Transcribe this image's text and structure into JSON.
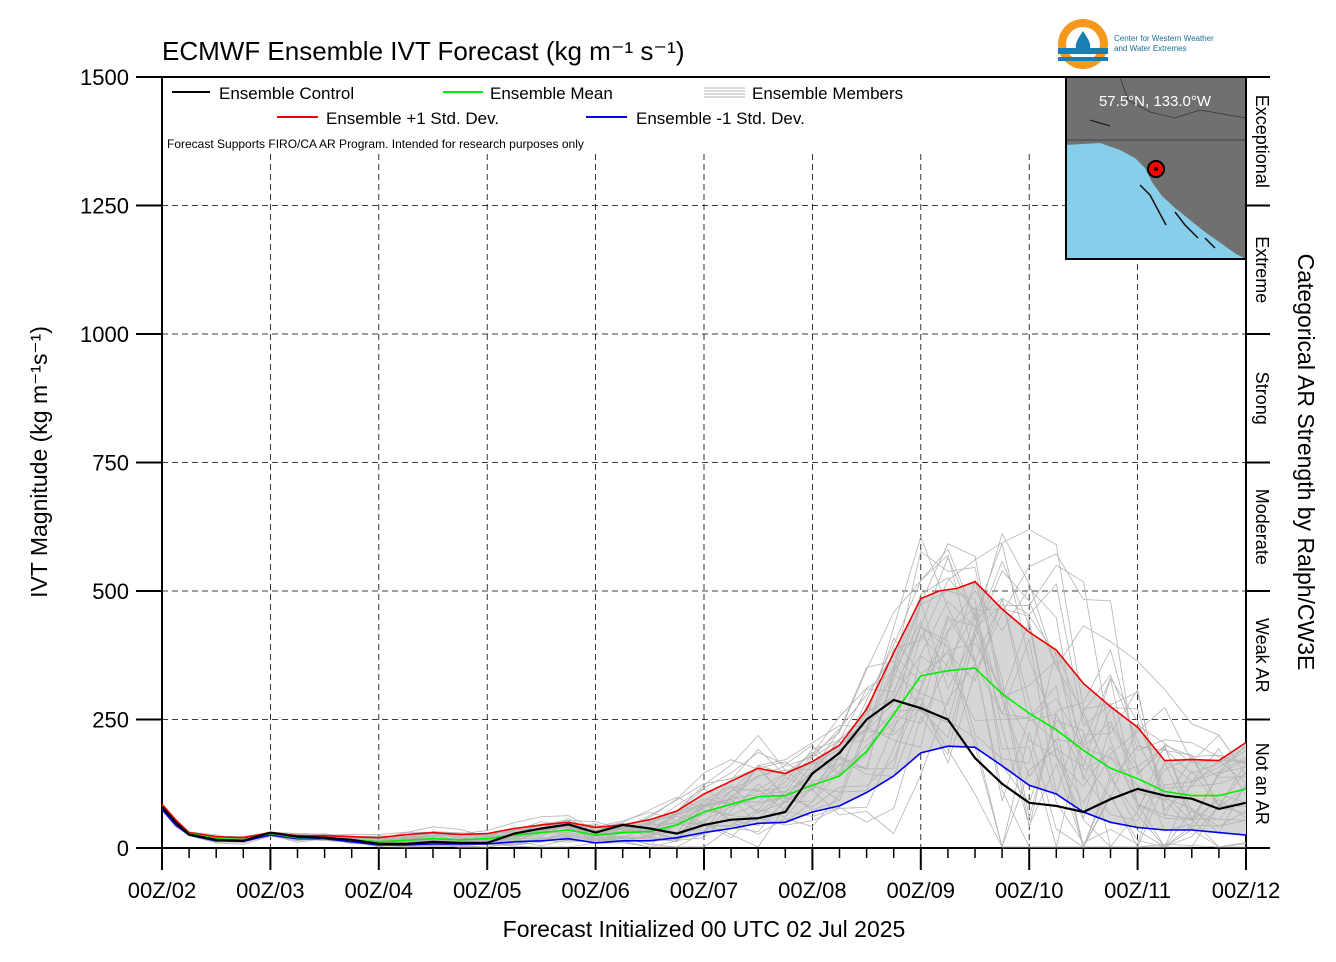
{
  "logo": {
    "line1": "Center for Western Weather",
    "line2": "and Water Extremes",
    "icon": "water-drop-logo-icon",
    "colors": {
      "ring": "#f39a1e",
      "band": "#1a7fb0"
    }
  },
  "inset_map": {
    "location_label": "57.5°N, 133.0°W",
    "icon": "location-marker-icon",
    "colors": {
      "land": "#707070",
      "ocean": "#87ceeb",
      "marker": "#ff0000"
    }
  },
  "chart_data": {
    "type": "line",
    "title": "ECMWF Ensemble IVT Forecast (kg m⁻¹ s⁻¹)",
    "ylabel": "IVT Magnitude (kg m⁻¹s⁻¹)",
    "xlabel": "Forecast Initialized 00 UTC 02 Jul 2025",
    "right_axis_label": "Categorical AR Strength by Ralph/CW3E",
    "note": "Forecast Supports FIRO/CA AR Program. Intended for research purposes only",
    "ylim": [
      0,
      1500
    ],
    "xlim": [
      0,
      240
    ],
    "y_ticks": [
      0,
      250,
      500,
      750,
      1000,
      1250,
      1500
    ],
    "x_ticks": [
      {
        "t": 0,
        "label": "00Z/02"
      },
      {
        "t": 24,
        "label": "00Z/03"
      },
      {
        "t": 48,
        "label": "00Z/04"
      },
      {
        "t": 72,
        "label": "00Z/05"
      },
      {
        "t": 96,
        "label": "00Z/06"
      },
      {
        "t": 120,
        "label": "00Z/07"
      },
      {
        "t": 144,
        "label": "00Z/08"
      },
      {
        "t": 168,
        "label": "00Z/09"
      },
      {
        "t": 192,
        "label": "00Z/10"
      },
      {
        "t": 216,
        "label": "00Z/11"
      },
      {
        "t": 240,
        "label": "00Z/12"
      }
    ],
    "grid": true,
    "legend_position": "top-left",
    "legend": [
      {
        "label": "Ensemble Control",
        "color": "#000000"
      },
      {
        "label": "Ensemble Mean",
        "color": "#00ee00"
      },
      {
        "label": "Ensemble Members",
        "color": "#b4b4b4"
      },
      {
        "label": "Ensemble +1 Std. Dev.",
        "color": "#ee0000"
      },
      {
        "label": "Ensemble -1 Std. Dev.",
        "color": "#0000ee"
      }
    ],
    "categories": [
      {
        "label": "Not an AR",
        "range": [
          0,
          250
        ]
      },
      {
        "label": "Weak AR",
        "range": [
          250,
          500
        ]
      },
      {
        "label": "Moderate",
        "range": [
          500,
          750
        ]
      },
      {
        "label": "Strong",
        "range": [
          750,
          1000
        ]
      },
      {
        "label": "Extreme",
        "range": [
          1000,
          1250
        ]
      },
      {
        "label": "Exceptional",
        "range": [
          1250,
          1500
        ]
      }
    ],
    "series": [
      {
        "name": "Ensemble +1 Std. Dev.",
        "color": "#ee0000",
        "points": [
          [
            0,
            85
          ],
          [
            3,
            55
          ],
          [
            6,
            30
          ],
          [
            12,
            22
          ],
          [
            18,
            20
          ],
          [
            24,
            30
          ],
          [
            30,
            24
          ],
          [
            36,
            24
          ],
          [
            42,
            22
          ],
          [
            48,
            20
          ],
          [
            54,
            26
          ],
          [
            60,
            30
          ],
          [
            66,
            26
          ],
          [
            72,
            28
          ],
          [
            78,
            38
          ],
          [
            84,
            45
          ],
          [
            90,
            50
          ],
          [
            96,
            40
          ],
          [
            102,
            45
          ],
          [
            108,
            55
          ],
          [
            114,
            72
          ],
          [
            120,
            105
          ],
          [
            126,
            130
          ],
          [
            132,
            155
          ],
          [
            138,
            145
          ],
          [
            144,
            168
          ],
          [
            150,
            200
          ],
          [
            156,
            270
          ],
          [
            162,
            380
          ],
          [
            168,
            485
          ],
          [
            172,
            500
          ],
          [
            176,
            505
          ],
          [
            180,
            518
          ],
          [
            186,
            465
          ],
          [
            192,
            420
          ],
          [
            198,
            385
          ],
          [
            204,
            320
          ],
          [
            210,
            275
          ],
          [
            216,
            235
          ],
          [
            222,
            170
          ],
          [
            228,
            172
          ],
          [
            234,
            170
          ],
          [
            240,
            205
          ]
        ]
      },
      {
        "name": "Ensemble Mean",
        "color": "#00ee00",
        "points": [
          [
            0,
            80
          ],
          [
            3,
            50
          ],
          [
            6,
            28
          ],
          [
            12,
            18
          ],
          [
            18,
            16
          ],
          [
            24,
            28
          ],
          [
            30,
            20
          ],
          [
            36,
            20
          ],
          [
            42,
            16
          ],
          [
            48,
            12
          ],
          [
            54,
            15
          ],
          [
            60,
            18
          ],
          [
            66,
            16
          ],
          [
            72,
            18
          ],
          [
            78,
            25
          ],
          [
            84,
            30
          ],
          [
            90,
            35
          ],
          [
            96,
            25
          ],
          [
            102,
            30
          ],
          [
            108,
            32
          ],
          [
            114,
            45
          ],
          [
            120,
            70
          ],
          [
            126,
            85
          ],
          [
            132,
            100
          ],
          [
            138,
            102
          ],
          [
            144,
            122
          ],
          [
            150,
            140
          ],
          [
            156,
            188
          ],
          [
            162,
            260
          ],
          [
            168,
            335
          ],
          [
            174,
            345
          ],
          [
            180,
            350
          ],
          [
            186,
            300
          ],
          [
            192,
            262
          ],
          [
            198,
            230
          ],
          [
            204,
            190
          ],
          [
            210,
            155
          ],
          [
            216,
            135
          ],
          [
            222,
            110
          ],
          [
            228,
            102
          ],
          [
            234,
            102
          ],
          [
            240,
            115
          ]
        ]
      },
      {
        "name": "Ensemble -1 Std. Dev.",
        "color": "#0000ee",
        "points": [
          [
            0,
            75
          ],
          [
            3,
            45
          ],
          [
            6,
            25
          ],
          [
            12,
            14
          ],
          [
            18,
            13
          ],
          [
            24,
            25
          ],
          [
            30,
            18
          ],
          [
            36,
            18
          ],
          [
            42,
            12
          ],
          [
            48,
            6
          ],
          [
            54,
            6
          ],
          [
            60,
            8
          ],
          [
            66,
            8
          ],
          [
            72,
            8
          ],
          [
            78,
            12
          ],
          [
            84,
            14
          ],
          [
            90,
            18
          ],
          [
            96,
            10
          ],
          [
            102,
            14
          ],
          [
            108,
            14
          ],
          [
            114,
            20
          ],
          [
            120,
            30
          ],
          [
            126,
            38
          ],
          [
            132,
            48
          ],
          [
            138,
            50
          ],
          [
            144,
            70
          ],
          [
            150,
            82
          ],
          [
            156,
            108
          ],
          [
            162,
            140
          ],
          [
            168,
            185
          ],
          [
            174,
            198
          ],
          [
            180,
            196
          ],
          [
            186,
            160
          ],
          [
            192,
            122
          ],
          [
            198,
            105
          ],
          [
            204,
            70
          ],
          [
            210,
            50
          ],
          [
            216,
            40
          ],
          [
            222,
            35
          ],
          [
            228,
            35
          ],
          [
            234,
            30
          ],
          [
            240,
            25
          ]
        ]
      },
      {
        "name": "Ensemble Control",
        "color": "#000000",
        "points": [
          [
            0,
            80
          ],
          [
            3,
            50
          ],
          [
            6,
            26
          ],
          [
            12,
            16
          ],
          [
            18,
            14
          ],
          [
            24,
            30
          ],
          [
            30,
            22
          ],
          [
            36,
            20
          ],
          [
            42,
            16
          ],
          [
            48,
            8
          ],
          [
            54,
            8
          ],
          [
            60,
            12
          ],
          [
            66,
            10
          ],
          [
            72,
            10
          ],
          [
            78,
            28
          ],
          [
            84,
            38
          ],
          [
            90,
            46
          ],
          [
            96,
            30
          ],
          [
            102,
            45
          ],
          [
            108,
            38
          ],
          [
            114,
            28
          ],
          [
            120,
            45
          ],
          [
            126,
            55
          ],
          [
            132,
            58
          ],
          [
            138,
            70
          ],
          [
            144,
            145
          ],
          [
            150,
            185
          ],
          [
            156,
            250
          ],
          [
            162,
            288
          ],
          [
            168,
            272
          ],
          [
            174,
            250
          ],
          [
            180,
            175
          ],
          [
            186,
            125
          ],
          [
            192,
            88
          ],
          [
            198,
            82
          ],
          [
            204,
            70
          ],
          [
            210,
            95
          ],
          [
            216,
            115
          ],
          [
            222,
            102
          ],
          [
            228,
            96
          ],
          [
            234,
            76
          ],
          [
            240,
            88
          ]
        ]
      }
    ]
  }
}
